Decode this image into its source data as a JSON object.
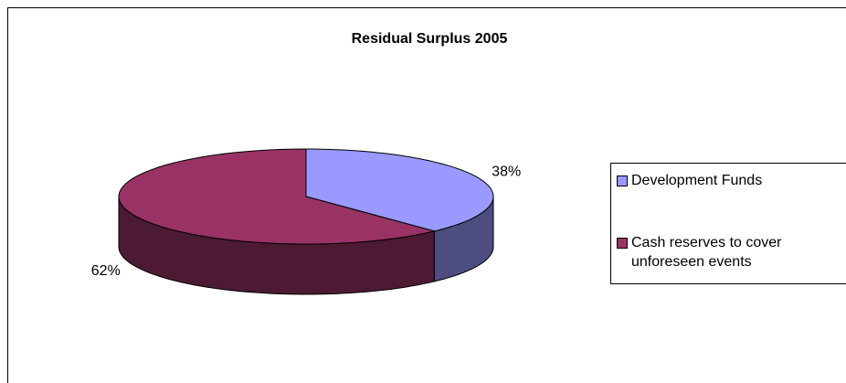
{
  "chart_data": {
    "type": "pie",
    "title": "Residual Surplus  2005",
    "categories": [
      "Development Funds",
      "Cash reserves to cover unforeseen events"
    ],
    "values": [
      38,
      62
    ],
    "value_labels": [
      "38%",
      "62%"
    ],
    "colors": [
      "#9999ff",
      "#993366"
    ],
    "legend": "right"
  }
}
